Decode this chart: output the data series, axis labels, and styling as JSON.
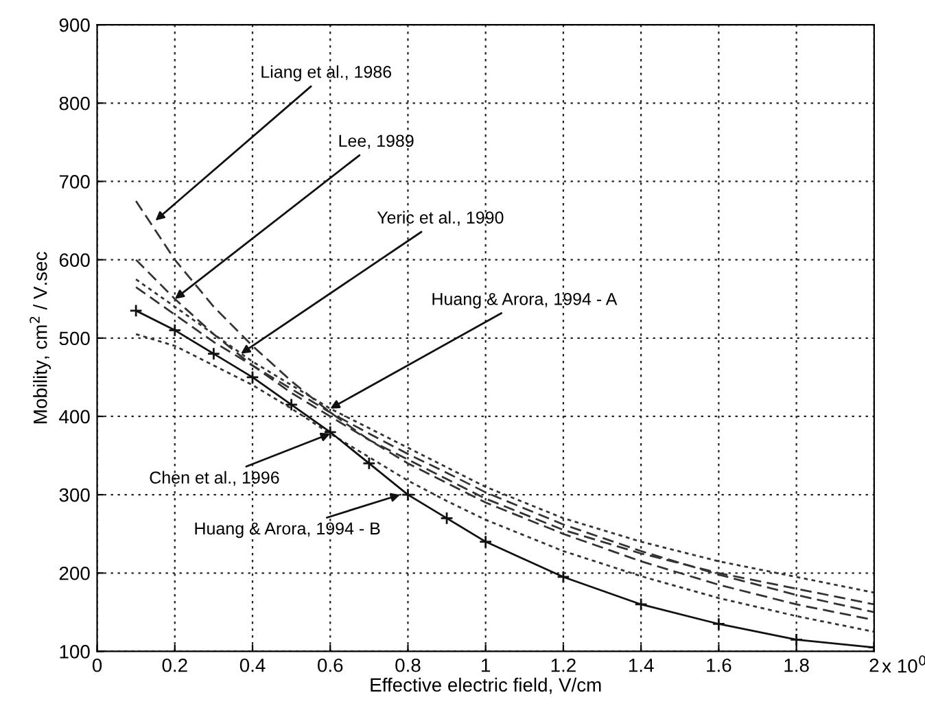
{
  "chart_data": {
    "type": "line",
    "xlabel": "Effective electric field, V/cm",
    "ylabel": "Mobility, cm$^{2}$ / V.sec",
    "x": [
      0.1,
      0.2,
      0.3,
      0.4,
      0.5,
      0.6,
      0.7,
      0.8,
      0.9,
      1.0,
      1.2,
      1.4,
      1.6,
      1.8,
      2.0
    ],
    "series": [
      {
        "color": "#333333",
        "line_style": "dashed",
        "values": [
          675,
          600,
          540,
          490,
          445,
          405,
          370,
          340,
          315,
          290,
          250,
          215,
          185,
          160,
          140
        ]
      },
      {
        "color": "#333333",
        "line_style": "dashed",
        "values": [
          600,
          550,
          505,
          465,
          430,
          400,
          370,
          345,
          320,
          295,
          255,
          225,
          200,
          180,
          160
        ]
      },
      {
        "color": "#333333",
        "line_style": "dotted",
        "values": [
          575,
          540,
          505,
          470,
          440,
          410,
          385,
          360,
          335,
          310,
          270,
          240,
          215,
          195,
          175
        ]
      },
      {
        "color": "#333333",
        "line_style": "dashed",
        "values": [
          565,
          530,
          495,
          465,
          435,
          405,
          378,
          352,
          328,
          303,
          262,
          228,
          198,
          172,
          150
        ]
      },
      {
        "color": "#333333",
        "line_style": "dotted",
        "values": [
          505,
          490,
          465,
          440,
          410,
          378,
          348,
          318,
          292,
          268,
          228,
          196,
          168,
          145,
          125
        ]
      },
      {
        "color": "#111111",
        "line_style": "solid",
        "marker": "cross",
        "values": [
          535,
          510,
          480,
          450,
          415,
          380,
          340,
          300,
          270,
          240,
          195,
          160,
          135,
          115,
          105
        ]
      }
    ],
    "annotations": [
      {
        "text": "Liang et al., 1986",
        "x": 0.15,
        "y": 650
      },
      {
        "text": "Lee, 1989",
        "x": 0.2,
        "y": 550
      },
      {
        "text": "Yeric et al., 1990",
        "x": 0.37,
        "y": 480
      },
      {
        "text": "Huang & Arora, 1994 - A",
        "x": 0.6,
        "y": 410
      },
      {
        "text": "Chen et al., 1996",
        "x": 0.6,
        "y": 378
      },
      {
        "text": "Huang & Arora, 1994 - B",
        "x": 0.78,
        "y": 300
      },
      "x 10$^{0}$"
    ],
    "xlim": [
      0,
      2
    ],
    "ylim": [
      100,
      900
    ],
    "xticks": [
      0,
      0.2,
      0.4,
      0.6,
      0.8,
      1,
      1.2,
      1.4,
      1.6,
      1.8,
      2
    ],
    "yticks": [
      100,
      200,
      300,
      400,
      500,
      600,
      700,
      800,
      900
    ],
    "grid": true,
    "legend": false
  }
}
